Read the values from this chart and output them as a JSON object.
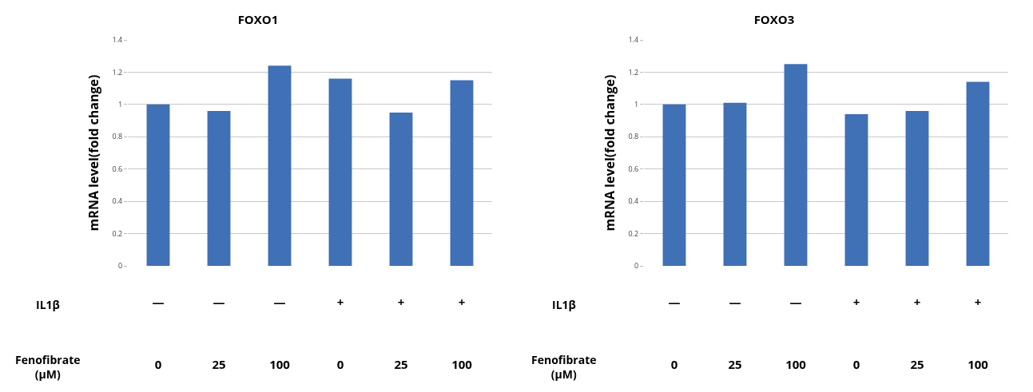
{
  "chart_data": [
    {
      "type": "bar",
      "title": "FOXO1",
      "ylabel": "mRNA level(fold change)",
      "categories": [
        "—\n0",
        "—\n25",
        "—\n100",
        "+\n0",
        "+\n25",
        "+\n100"
      ],
      "values": [
        1.0,
        0.96,
        1.24,
        1.16,
        0.95,
        1.15
      ],
      "color": "#4070b5",
      "ylim": [
        0,
        1.4
      ],
      "yticks": [
        0,
        0.2,
        0.4,
        0.6,
        0.8,
        1,
        1.2,
        1.4
      ],
      "grid": "y",
      "annotations": [
        "IL1β",
        "Fenofibrate\n(μM)"
      ]
    },
    {
      "type": "bar",
      "title": "FOXO3",
      "ylabel": "mRNA level(fold change)",
      "categories": [
        "—\n0",
        "—\n25",
        "—\n100",
        "+\n0",
        "+\n25",
        "+\n100"
      ],
      "values": [
        1.0,
        1.01,
        1.25,
        0.94,
        0.96,
        1.14
      ],
      "color": "#4070b5",
      "ylim": [
        0,
        1.4
      ],
      "yticks": [
        0,
        0.2,
        0.4,
        0.6,
        0.8,
        1,
        1.2,
        1.4
      ],
      "grid": "y",
      "annotations": [
        "IL1β",
        "Fenofibrate\n(μM)"
      ]
    }
  ]
}
